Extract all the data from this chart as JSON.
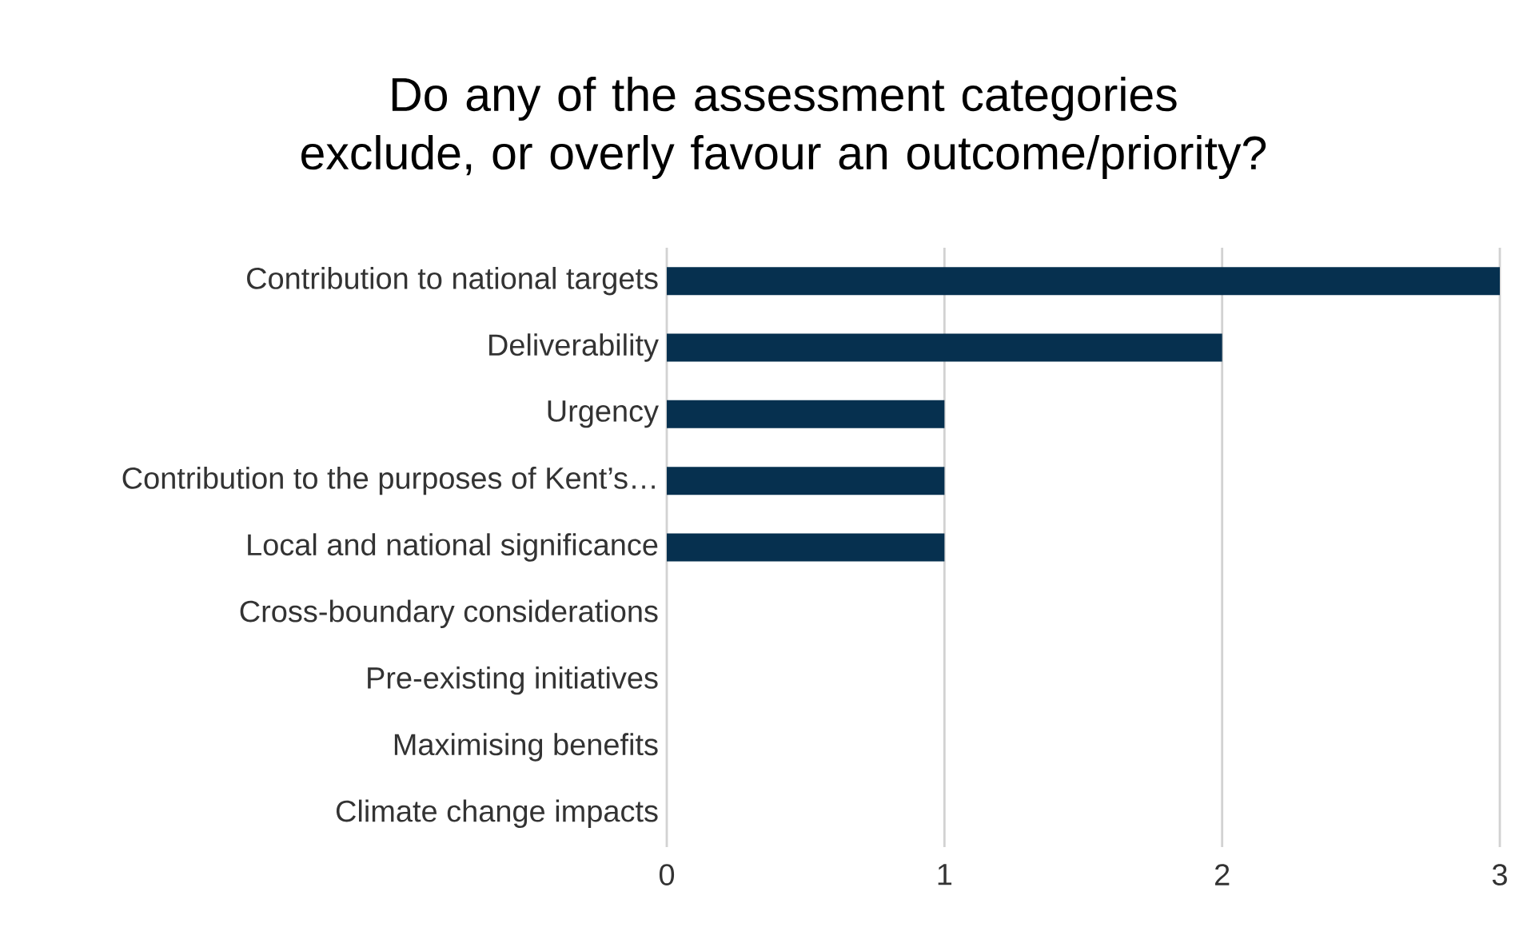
{
  "chart_data": {
    "type": "bar",
    "orientation": "horizontal",
    "title": "Do any of the assessment categories exclude, or overly favour an outcome/priority?",
    "categories": [
      "Contribution to national targets",
      "Deliverability",
      "Urgency",
      "Contribution to the purposes of Kent’s…",
      "Local and national significance",
      "Cross-boundary considerations",
      "Pre-existing initiatives",
      "Maximising benefits",
      "Climate change impacts"
    ],
    "values": [
      3,
      2,
      1,
      1,
      1,
      0,
      0,
      0,
      0
    ],
    "color": "#06304f",
    "xlim": [
      0,
      3
    ],
    "xticks": [
      0,
      1,
      2,
      3
    ],
    "grid": "x"
  }
}
